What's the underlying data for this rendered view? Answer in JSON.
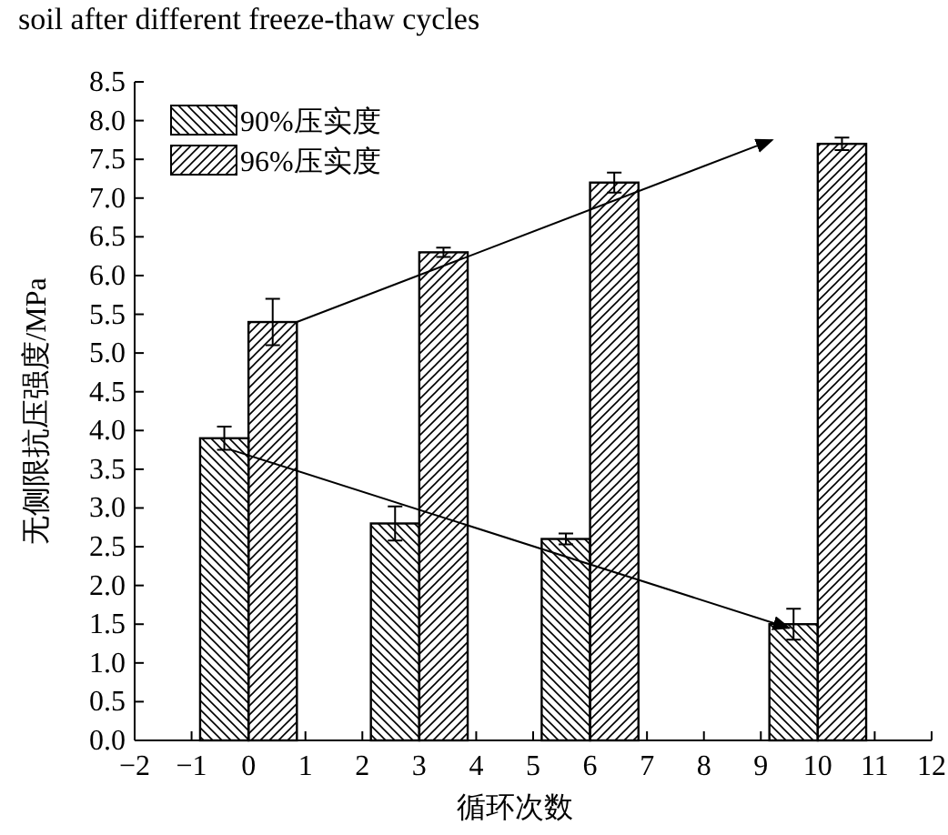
{
  "chart_data": {
    "type": "bar",
    "title": "soil after different freeze-thaw cycles",
    "xlabel": "循环次数",
    "ylabel": "无侧限抗压强度/MPa",
    "x": [
      0,
      3,
      6,
      10
    ],
    "series": [
      {
        "name": "90%压实度",
        "color": "#000000",
        "values": [
          3.9,
          2.8,
          2.6,
          1.5
        ],
        "errors": [
          0.15,
          0.22,
          0.07,
          0.2
        ]
      },
      {
        "name": "96%压实度",
        "color": "#000000",
        "values": [
          5.4,
          6.3,
          7.2,
          7.7
        ],
        "errors": [
          0.3,
          0.06,
          0.13,
          0.08
        ]
      },
      {
        "type": "line",
        "color": "#000000",
        "x": [
          -0.3,
          9.5
        ],
        "values": [
          3.75,
          1.45
        ]
      },
      {
        "type": "line",
        "color": "#000000",
        "x": [
          0.85,
          9.2
        ],
        "values": [
          5.4,
          7.75
        ]
      }
    ],
    "xlim": [
      -2,
      12
    ],
    "xticks": [
      {
        "value": -2,
        "label": "−2"
      },
      {
        "value": -1,
        "label": "−1"
      },
      0,
      1,
      2,
      3,
      4,
      5,
      6,
      7,
      8,
      9,
      10,
      11,
      12
    ],
    "ylim": [
      0,
      8.5
    ],
    "yticks": [
      {
        "value": 0,
        "label": "0.0"
      },
      0.5,
      {
        "value": 1,
        "label": "1.0"
      },
      1.5,
      {
        "value": 2,
        "label": "2.0"
      },
      2.5,
      {
        "value": 3,
        "label": "3.0"
      },
      3.5,
      {
        "value": 4,
        "label": "4.0"
      },
      4.5,
      {
        "value": 5,
        "label": "5.0"
      },
      5.5,
      {
        "value": 6,
        "label": "6.0"
      },
      6.5,
      {
        "value": 7,
        "label": "7.0"
      },
      7.5,
      {
        "value": 8,
        "label": "8.0"
      },
      8.5
    ],
    "legend": "top left",
    "grid": false
  }
}
